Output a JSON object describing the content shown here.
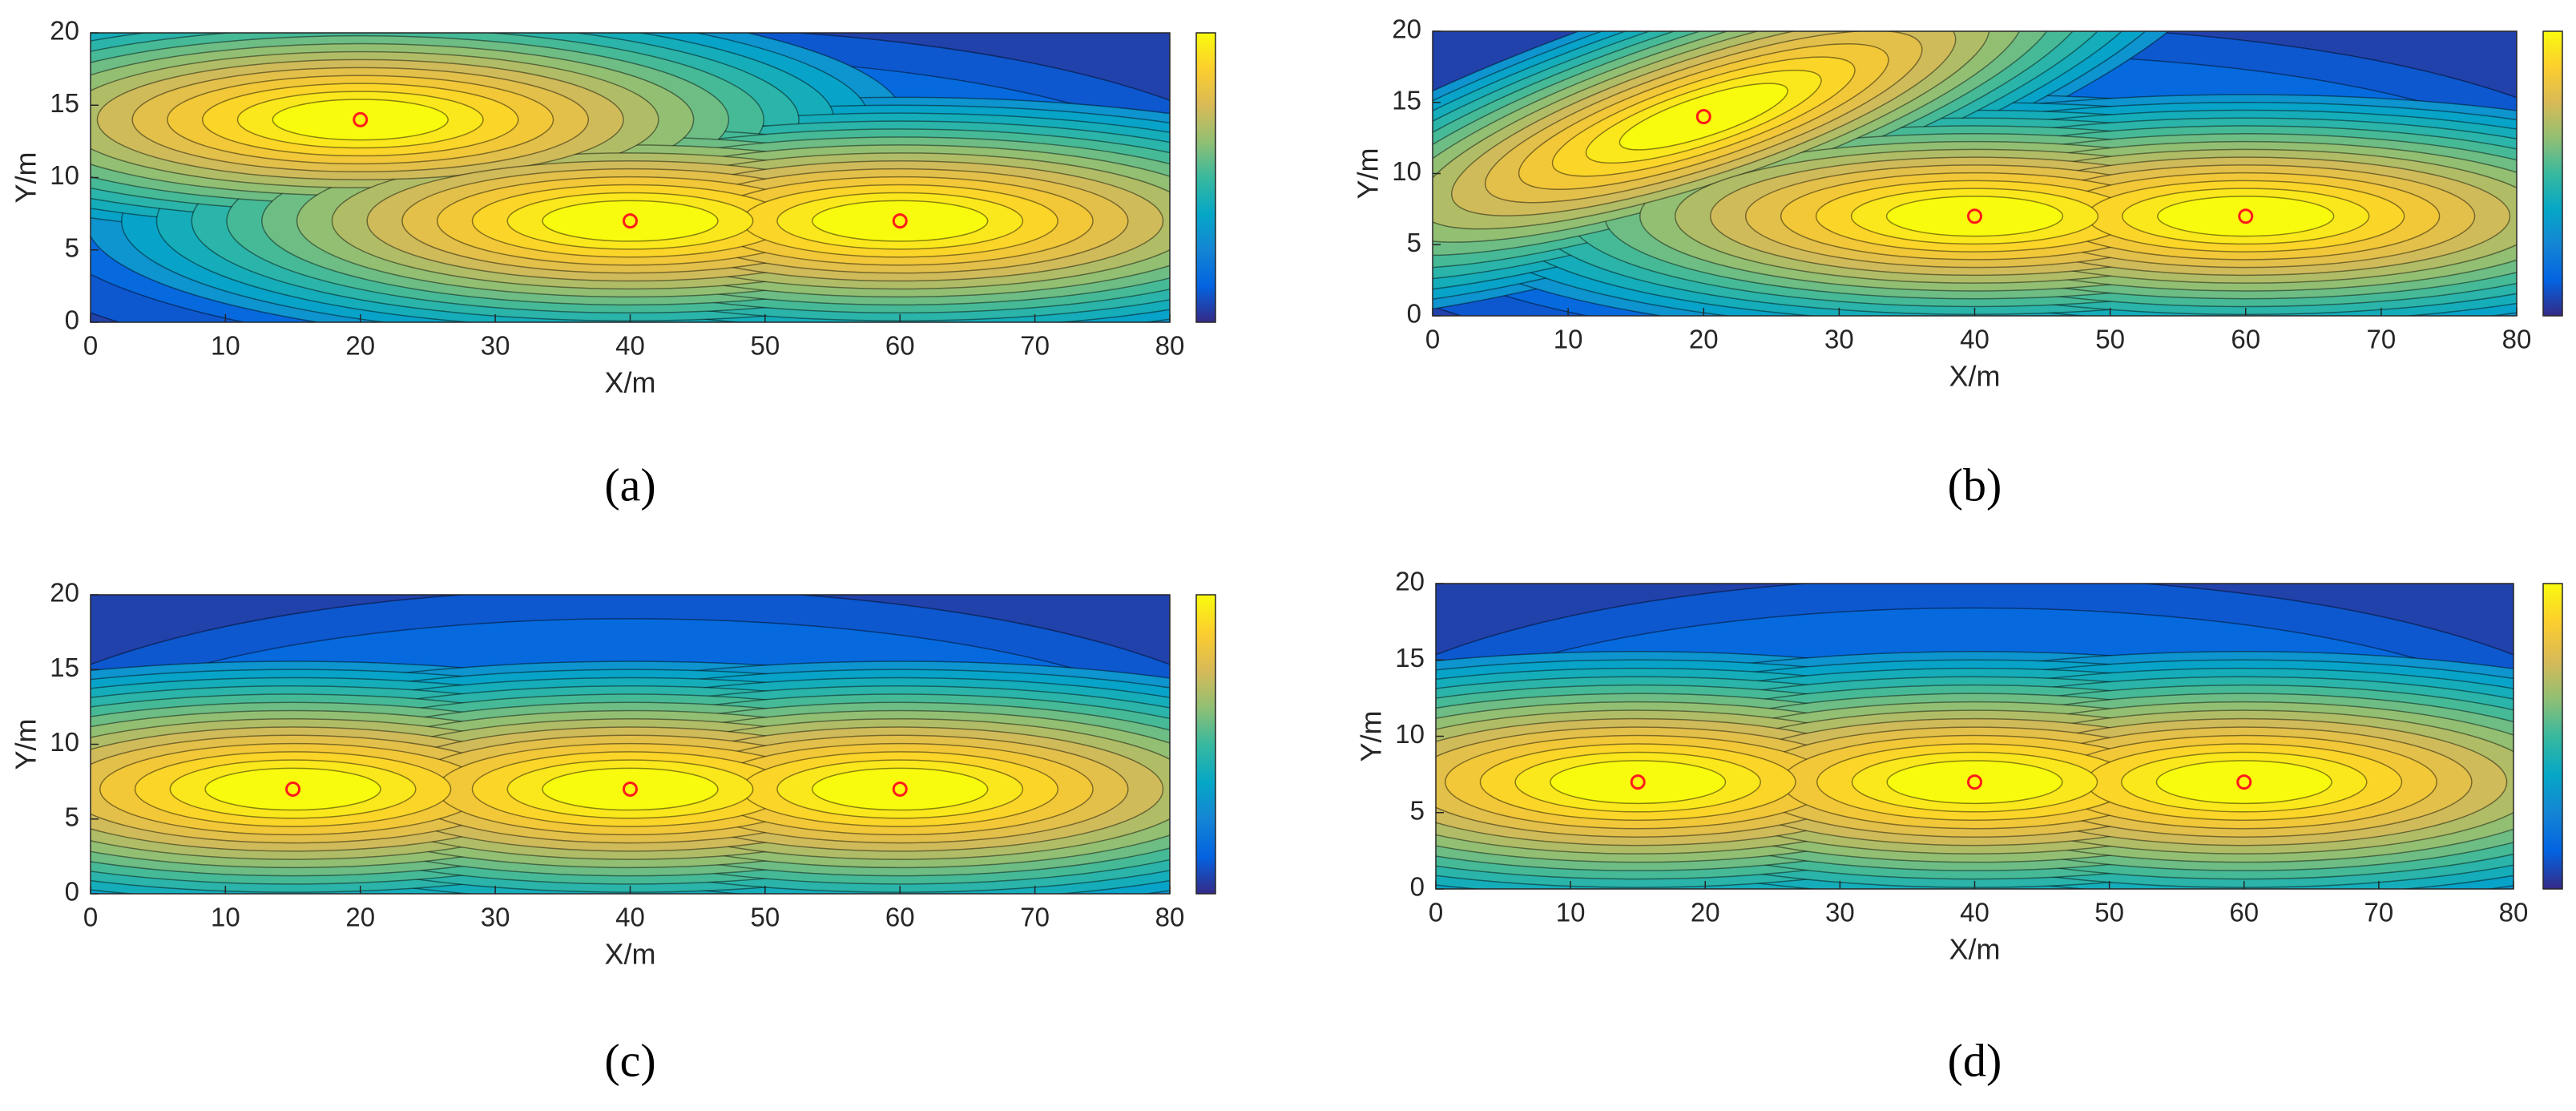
{
  "chart_data": [
    {
      "type": "contour",
      "caption": "(a)",
      "xlabel": "X/m",
      "ylabel": "Y/m",
      "xlim": [
        0,
        80
      ],
      "ylim": [
        0,
        20
      ],
      "xticks": [
        0,
        10,
        20,
        30,
        40,
        50,
        60,
        70,
        80
      ],
      "yticks": [
        0,
        5,
        10,
        15,
        20
      ],
      "points": {
        "x": [
          20,
          40,
          60
        ],
        "y": [
          14,
          7,
          7
        ]
      },
      "marker_color": "#ff1a1a"
    },
    {
      "type": "contour",
      "caption": "(b)",
      "xlabel": "X/m",
      "ylabel": "Y/m",
      "xlim": [
        0,
        80
      ],
      "ylim": [
        0,
        20
      ],
      "xticks": [
        0,
        10,
        20,
        30,
        40,
        50,
        60,
        70,
        80
      ],
      "yticks": [
        0,
        5,
        10,
        15,
        20
      ],
      "points": {
        "x": [
          20,
          40,
          60
        ],
        "y": [
          14,
          7,
          7
        ]
      },
      "marker_color": "#ff1a1a"
    },
    {
      "type": "contour",
      "caption": "(c)",
      "xlabel": "X/m",
      "ylabel": "Y/m",
      "xlim": [
        0,
        80
      ],
      "ylim": [
        0,
        20
      ],
      "xticks": [
        0,
        10,
        20,
        30,
        40,
        50,
        60,
        70,
        80
      ],
      "yticks": [
        0,
        5,
        10,
        15,
        20
      ],
      "points": {
        "x": [
          15,
          40,
          60
        ],
        "y": [
          7,
          7,
          7
        ]
      },
      "marker_color": "#ff1a1a"
    },
    {
      "type": "contour",
      "caption": "(d)",
      "xlabel": "X/m",
      "ylabel": "Y/m",
      "xlim": [
        0,
        80
      ],
      "ylim": [
        0,
        20
      ],
      "xticks": [
        0,
        10,
        20,
        30,
        40,
        50,
        60,
        70,
        80
      ],
      "yticks": [
        0,
        5,
        10,
        15,
        20
      ],
      "points": {
        "x": [
          15,
          40,
          60
        ],
        "y": [
          7,
          7,
          7
        ]
      },
      "marker_color": "#ff1a1a"
    }
  ]
}
